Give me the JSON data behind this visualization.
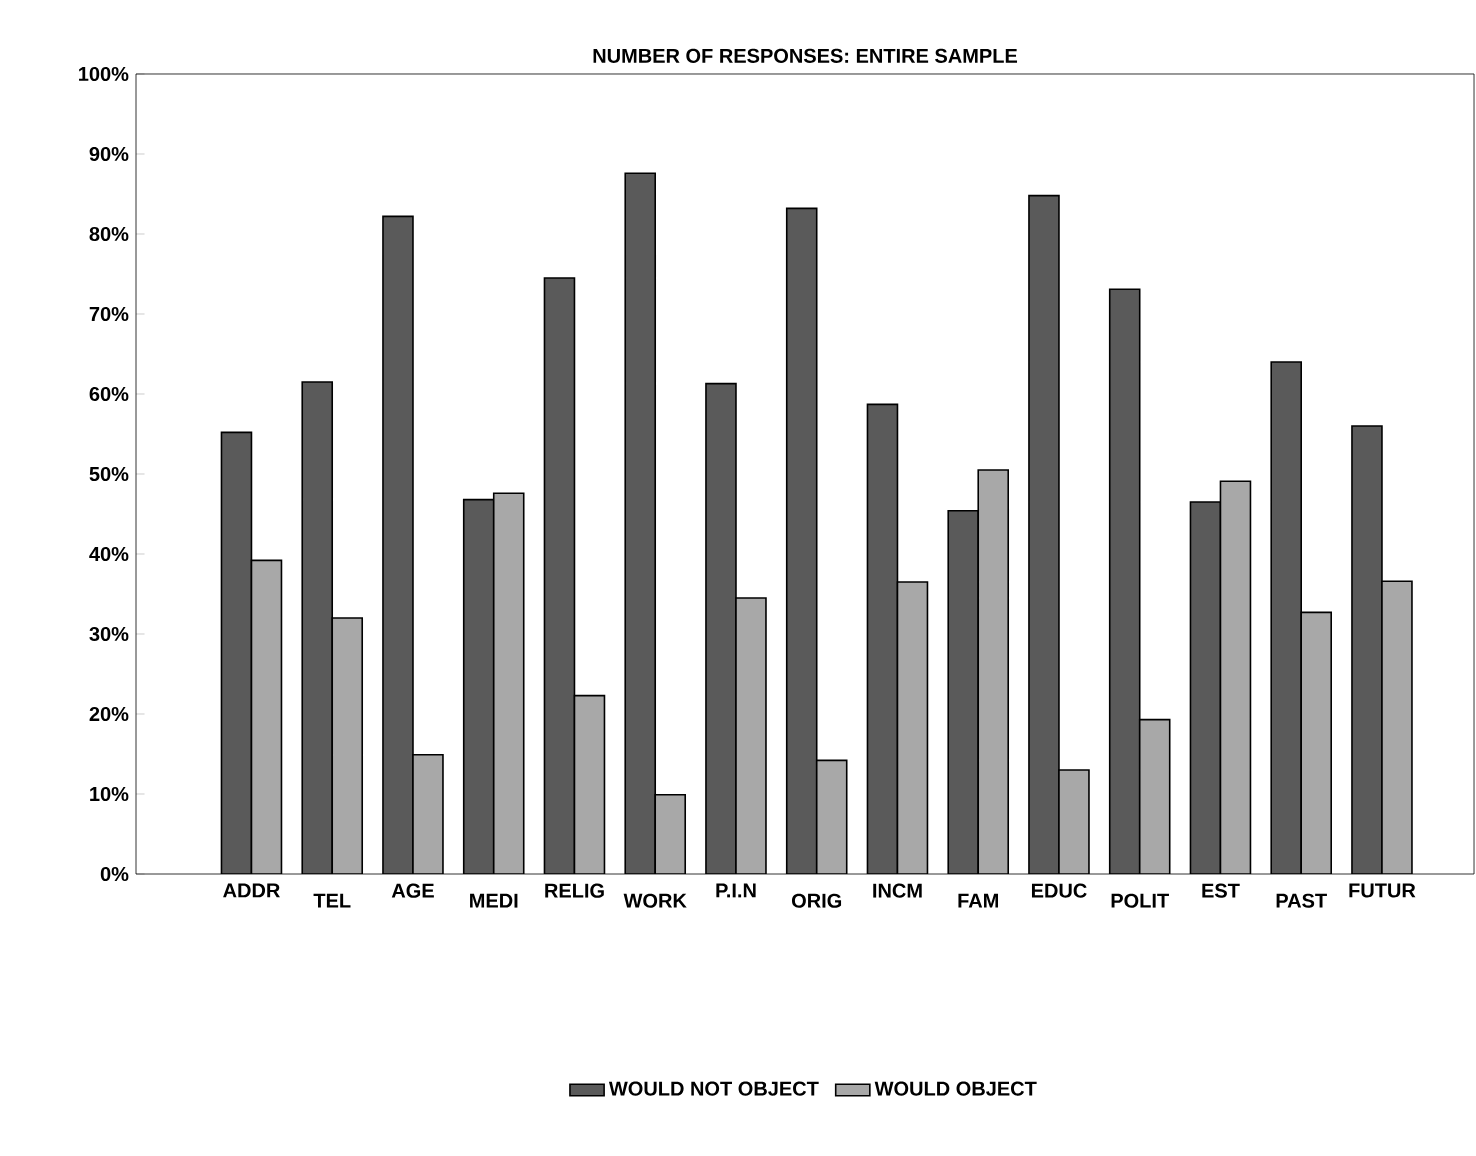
{
  "chart_data": {
    "type": "bar",
    "title": "NUMBER OF RESPONSES: ENTIRE SAMPLE",
    "categories": [
      "ADDR",
      "TEL",
      "AGE",
      "MEDI",
      "RELIG",
      "WORK",
      "P.I.N",
      "ORIG",
      "INCM",
      "FAM",
      "EDUC",
      "POLIT",
      "EST",
      "PAST",
      "FUTUR"
    ],
    "series": [
      {
        "name": "WOULD NOT OBJECT",
        "color": "#5a5a5a",
        "values": [
          55.2,
          61.5,
          82.2,
          46.8,
          74.5,
          87.6,
          61.3,
          83.2,
          58.7,
          45.4,
          84.8,
          73.1,
          46.5,
          64.0,
          56.0
        ]
      },
      {
        "name": "WOULD OBJECT",
        "color": "#a8a8a8",
        "values": [
          39.2,
          32.0,
          14.9,
          47.6,
          22.3,
          9.9,
          34.5,
          14.2,
          36.5,
          50.5,
          13.0,
          19.3,
          49.1,
          32.7,
          36.6
        ]
      }
    ],
    "ylim": [
      0,
      100
    ],
    "yticks": [
      {
        "value": 0,
        "label": "0%"
      },
      {
        "value": 10,
        "label": "10%"
      },
      {
        "value": 20,
        "label": "20%"
      },
      {
        "value": 30,
        "label": "30%"
      },
      {
        "value": 40,
        "label": "40%"
      },
      {
        "value": 50,
        "label": "50%"
      },
      {
        "value": 60,
        "label": "60%"
      },
      {
        "value": 70,
        "label": "70%"
      },
      {
        "value": 80,
        "label": "80%"
      },
      {
        "value": 90,
        "label": "90%"
      },
      {
        "value": 100,
        "label": "100%"
      }
    ],
    "legend": "bottom"
  }
}
